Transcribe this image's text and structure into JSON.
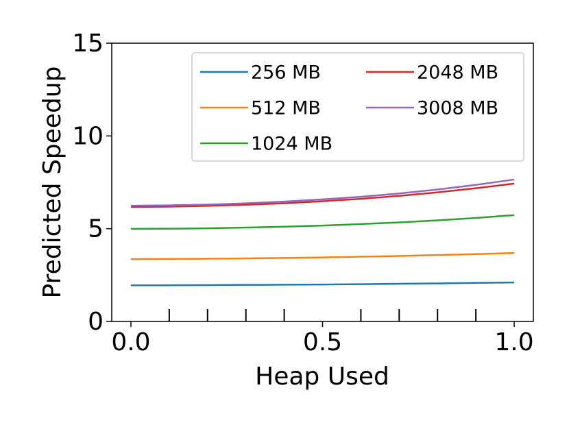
{
  "chart_data": {
    "type": "line",
    "x_label": "Heap Used",
    "y_label": "Predicted Speedup",
    "x": [
      0.0,
      0.1,
      0.2,
      0.3,
      0.4,
      0.5,
      0.6,
      0.7,
      0.8,
      0.9,
      1.0
    ],
    "series": [
      {
        "name": "256 MB",
        "color": "#1f77b4",
        "values": [
          1.95,
          1.95,
          1.96,
          1.97,
          1.98,
          1.99,
          2.01,
          2.03,
          2.05,
          2.08,
          2.1
        ]
      },
      {
        "name": "512 MB",
        "color": "#ff7f0e",
        "values": [
          3.36,
          3.37,
          3.38,
          3.4,
          3.42,
          3.45,
          3.49,
          3.53,
          3.58,
          3.63,
          3.69
        ]
      },
      {
        "name": "1024 MB",
        "color": "#2ca02c",
        "values": [
          4.99,
          5.0,
          5.02,
          5.06,
          5.11,
          5.17,
          5.25,
          5.34,
          5.45,
          5.58,
          5.73
        ]
      },
      {
        "name": "2048 MB",
        "color": "#d62728",
        "values": [
          6.17,
          6.19,
          6.23,
          6.29,
          6.37,
          6.48,
          6.61,
          6.77,
          6.96,
          7.18,
          7.43
        ]
      },
      {
        "name": "3008 MB",
        "color": "#9467bd",
        "values": [
          6.24,
          6.26,
          6.3,
          6.37,
          6.46,
          6.58,
          6.72,
          6.9,
          7.11,
          7.36,
          7.65
        ]
      }
    ],
    "xlim": [
      -0.05,
      1.05
    ],
    "ylim": [
      0,
      15
    ],
    "xticks": [
      {
        "value": 0,
        "label": "0.0"
      },
      {
        "value": 0.5,
        "label": "0.5"
      },
      {
        "value": 1,
        "label": "1.0"
      }
    ],
    "xminorticks": [
      0.1,
      0.2,
      0.3,
      0.4,
      0.6,
      0.7,
      0.8,
      0.9
    ],
    "yticks": [
      0,
      5,
      10,
      15
    ],
    "legend": "upper right",
    "legend_columns": 2,
    "grid": false
  }
}
